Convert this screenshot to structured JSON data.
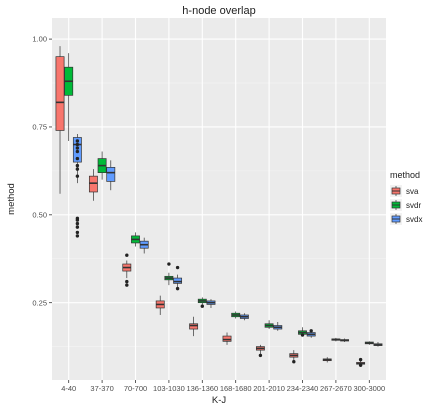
{
  "chart_data": {
    "type": "boxplot",
    "title": "h-node overlap",
    "xlabel": "K-J",
    "ylabel": "method",
    "ylim": [
      0.03,
      1.06
    ],
    "y_ticks": [
      0.25,
      0.5,
      0.75,
      1.0
    ],
    "y_tick_labels": [
      "0.25",
      "0.50",
      "0.75",
      "1.00"
    ],
    "grid": true,
    "legend_position": "right",
    "legend": {
      "title": "method",
      "entries": [
        {
          "name": "sva",
          "color": "#F8766D"
        },
        {
          "name": "svdr",
          "color": "#00BA38"
        },
        {
          "name": "svdx",
          "color": "#619CFF"
        }
      ]
    },
    "categories": [
      "4-40",
      "37-370",
      "70-700",
      "103-1030",
      "136-1360",
      "168-1680",
      "201-2010",
      "234-2340",
      "267-2670",
      "300-3000"
    ],
    "series": [
      {
        "name": "sva",
        "color": "#F8766D",
        "boxes": [
          {
            "low": 0.56,
            "q1": 0.74,
            "median": 0.82,
            "q3": 0.95,
            "high": 0.98,
            "outliers": []
          },
          {
            "low": 0.54,
            "q1": 0.565,
            "median": 0.59,
            "q3": 0.61,
            "high": 0.63,
            "outliers": []
          },
          {
            "low": 0.32,
            "q1": 0.34,
            "median": 0.35,
            "q3": 0.36,
            "high": 0.37,
            "outliers": [
              0.3,
              0.31,
              0.385
            ]
          },
          {
            "low": 0.215,
            "q1": 0.235,
            "median": 0.245,
            "q3": 0.255,
            "high": 0.27,
            "outliers": []
          },
          {
            "low": 0.155,
            "q1": 0.175,
            "median": 0.185,
            "q3": 0.19,
            "high": 0.21,
            "outliers": []
          },
          {
            "low": 0.13,
            "q1": 0.14,
            "median": 0.145,
            "q3": 0.155,
            "high": 0.165,
            "outliers": []
          },
          {
            "low": 0.1,
            "q1": 0.115,
            "median": 0.12,
            "q3": 0.125,
            "high": 0.13,
            "outliers": [
              0.1
            ]
          },
          {
            "low": 0.08,
            "q1": 0.095,
            "median": 0.1,
            "q3": 0.105,
            "high": 0.115,
            "outliers": [
              0.082
            ]
          },
          {
            "low": 0.08,
            "q1": 0.085,
            "median": 0.088,
            "q3": 0.09,
            "high": 0.095,
            "outliers": []
          },
          {
            "low": 0.07,
            "q1": 0.075,
            "median": 0.077,
            "q3": 0.08,
            "high": 0.09,
            "outliers": [
              0.072,
              0.088
            ]
          }
        ]
      },
      {
        "name": "svdr",
        "color": "#00BA38",
        "boxes": [
          {
            "low": 0.71,
            "q1": 0.84,
            "median": 0.88,
            "q3": 0.92,
            "high": 0.96,
            "outliers": []
          },
          {
            "low": 0.6,
            "q1": 0.62,
            "median": 0.64,
            "q3": 0.66,
            "high": 0.68,
            "outliers": []
          },
          {
            "low": 0.41,
            "q1": 0.42,
            "median": 0.43,
            "q3": 0.44,
            "high": 0.45,
            "outliers": []
          },
          {
            "low": 0.3,
            "q1": 0.315,
            "median": 0.32,
            "q3": 0.325,
            "high": 0.335,
            "outliers": [
              0.36
            ]
          },
          {
            "low": 0.24,
            "q1": 0.25,
            "median": 0.255,
            "q3": 0.26,
            "high": 0.265,
            "outliers": [
              0.24
            ]
          },
          {
            "low": 0.205,
            "q1": 0.21,
            "median": 0.215,
            "q3": 0.22,
            "high": 0.225,
            "outliers": []
          },
          {
            "low": 0.175,
            "q1": 0.18,
            "median": 0.185,
            "q3": 0.19,
            "high": 0.2,
            "outliers": []
          },
          {
            "low": 0.155,
            "q1": 0.16,
            "median": 0.165,
            "q3": 0.17,
            "high": 0.18,
            "outliers": [
              0.158
            ]
          },
          {
            "low": 0.14,
            "q1": 0.143,
            "median": 0.145,
            "q3": 0.147,
            "high": 0.15,
            "outliers": []
          },
          {
            "low": 0.13,
            "q1": 0.133,
            "median": 0.135,
            "q3": 0.138,
            "high": 0.14,
            "outliers": []
          }
        ]
      },
      {
        "name": "svdx",
        "color": "#619CFF",
        "boxes": [
          {
            "low": 0.59,
            "q1": 0.65,
            "median": 0.7,
            "q3": 0.72,
            "high": 0.73,
            "outliers": [
              0.44,
              0.45,
              0.465,
              0.475,
              0.485,
              0.49,
              0.61,
              0.63,
              0.64,
              0.66,
              0.68,
              0.69,
              0.7,
              0.71
            ]
          },
          {
            "low": 0.57,
            "q1": 0.595,
            "median": 0.62,
            "q3": 0.635,
            "high": 0.655,
            "outliers": []
          },
          {
            "low": 0.39,
            "q1": 0.405,
            "median": 0.415,
            "q3": 0.425,
            "high": 0.435,
            "outliers": []
          },
          {
            "low": 0.29,
            "q1": 0.305,
            "median": 0.31,
            "q3": 0.32,
            "high": 0.33,
            "outliers": [
              0.29,
              0.35
            ]
          },
          {
            "low": 0.235,
            "q1": 0.245,
            "median": 0.25,
            "q3": 0.255,
            "high": 0.26,
            "outliers": []
          },
          {
            "low": 0.2,
            "q1": 0.205,
            "median": 0.21,
            "q3": 0.215,
            "high": 0.22,
            "outliers": []
          },
          {
            "low": 0.17,
            "q1": 0.175,
            "median": 0.18,
            "q3": 0.185,
            "high": 0.195,
            "outliers": []
          },
          {
            "low": 0.15,
            "q1": 0.155,
            "median": 0.16,
            "q3": 0.165,
            "high": 0.17,
            "outliers": [
              0.17
            ]
          },
          {
            "low": 0.138,
            "q1": 0.141,
            "median": 0.143,
            "q3": 0.145,
            "high": 0.148,
            "outliers": []
          },
          {
            "low": 0.125,
            "q1": 0.128,
            "median": 0.13,
            "q3": 0.133,
            "high": 0.138,
            "outliers": []
          }
        ]
      }
    ]
  }
}
